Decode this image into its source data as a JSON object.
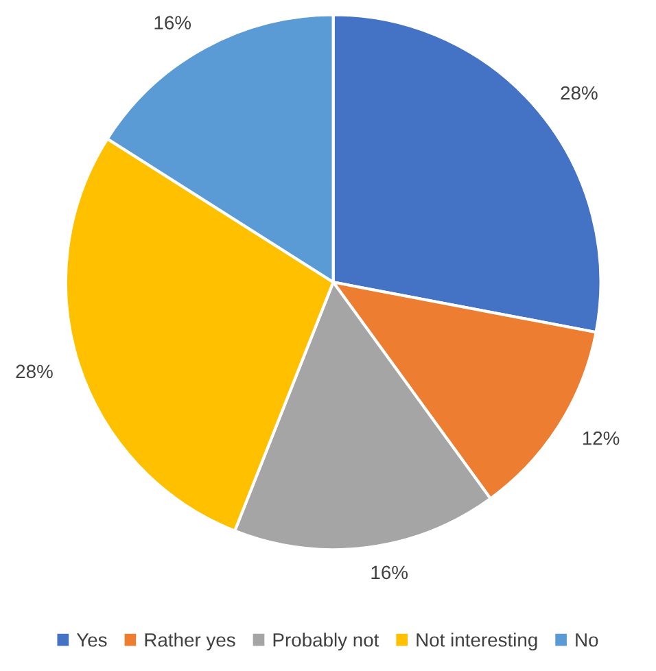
{
  "chart_data": {
    "type": "pie",
    "categories": [
      "Yes",
      "Rather yes",
      "Probably not",
      "Not interesting",
      "No"
    ],
    "values": [
      28,
      12,
      16,
      28,
      16
    ],
    "value_labels": [
      "28%",
      "12%",
      "16%",
      "28%",
      "16%"
    ],
    "colors": [
      "#4472c4",
      "#ed7d31",
      "#a5a5a5",
      "#ffc000",
      "#5b9bd5"
    ],
    "legend": "bottom"
  }
}
